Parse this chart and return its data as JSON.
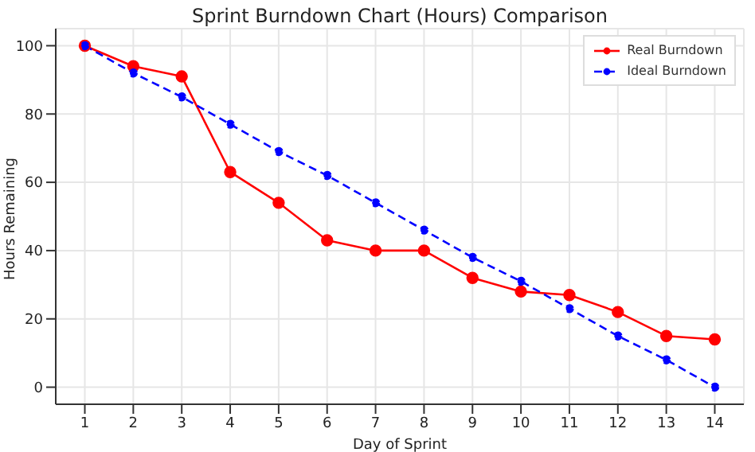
{
  "chart_data": {
    "type": "line",
    "title": "Sprint Burndown Chart (Hours) Comparison",
    "xlabel": "Day of Sprint",
    "ylabel": "Hours Remaining",
    "x": [
      1,
      2,
      3,
      4,
      5,
      6,
      7,
      8,
      9,
      10,
      11,
      12,
      13,
      14
    ],
    "series": [
      {
        "name": "Real Burndown",
        "color": "#ff0000",
        "line_style": "solid",
        "values": [
          100,
          94,
          91,
          63,
          54,
          43,
          40,
          40,
          32,
          28,
          27,
          22,
          15,
          14
        ]
      },
      {
        "name": "Ideal Burndown",
        "color": "#0000ff",
        "line_style": "dashed",
        "values": [
          100,
          92,
          85,
          77,
          69,
          62,
          54,
          46,
          38,
          31,
          23,
          15,
          8,
          0
        ]
      }
    ],
    "xlim": [
      0.4,
      14.6
    ],
    "xticks": [
      1,
      2,
      3,
      4,
      5,
      6,
      7,
      8,
      9,
      10,
      11,
      12,
      13,
      14
    ],
    "ylim": [
      -5,
      105
    ],
    "yticks": [
      0,
      20,
      40,
      60,
      80,
      100
    ],
    "grid": true,
    "legend": "top right",
    "marker": "circle"
  }
}
